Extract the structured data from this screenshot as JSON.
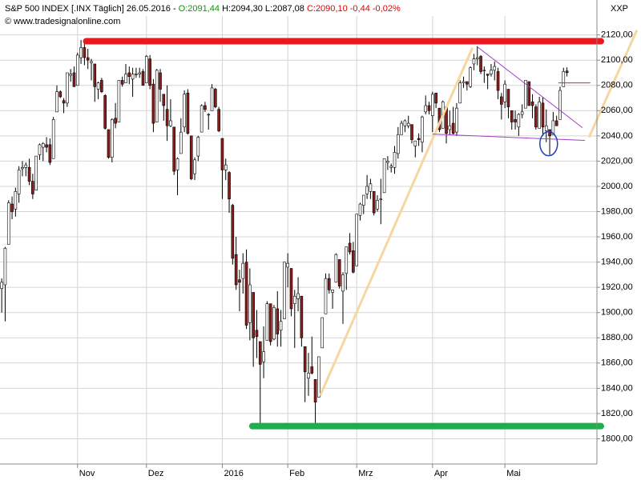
{
  "header": {
    "symbol": "S&P 500 INDEX [.INX  Täglich] 26.05.2016 -",
    "open_label": "O:2091,44",
    "hl_label": "H:2094,30 L:2087,08",
    "close_label": "C:2090,10 -0,44 -0,02%",
    "source": "© www.tradesignalonline.com",
    "corner": "XXP"
  },
  "chart_data": {
    "type": "candlestick",
    "categories": [
      null,
      null,
      null,
      null,
      null,
      null,
      null,
      null,
      null,
      null,
      null,
      null,
      null,
      null,
      null,
      null,
      null,
      null,
      null,
      null,
      null,
      null,
      "Nov",
      null,
      null,
      null,
      null,
      null,
      null,
      null,
      null,
      null,
      null,
      null,
      null,
      null,
      null,
      null,
      null,
      null,
      null,
      null,
      "Dez",
      null,
      null,
      null,
      null,
      null,
      null,
      null,
      null,
      null,
      null,
      null,
      null,
      null,
      null,
      null,
      null,
      null,
      null,
      null,
      null,
      null,
      "2016",
      null,
      null,
      null,
      null,
      null,
      null,
      null,
      null,
      null,
      null,
      null,
      null,
      null,
      null,
      null,
      null,
      null,
      null,
      "Feb",
      null,
      null,
      null,
      null,
      null,
      null,
      null,
      null,
      null,
      null,
      null,
      null,
      null,
      null,
      null,
      null,
      null,
      null,
      null,
      "Mrz",
      null,
      null,
      null,
      null,
      null,
      null,
      null,
      null,
      null,
      null,
      null,
      null,
      null,
      null,
      null,
      null,
      null,
      null,
      null,
      null,
      null,
      "Apr",
      null,
      null,
      null,
      null,
      null,
      null,
      null,
      null,
      null,
      null,
      null,
      null,
      null,
      null,
      null,
      null,
      null,
      null,
      null,
      null,
      "Mai",
      null,
      null,
      null,
      null,
      null,
      null,
      null,
      null,
      null,
      null,
      null,
      null,
      null,
      null,
      null,
      null,
      null,
      null
    ],
    "open": [
      1919,
      1922,
      1954,
      1986,
      1982,
      1994,
      2014,
      2015,
      2015,
      2004,
      1997,
      2025,
      2031,
      2033,
      2033,
      2022,
      2059,
      2075,
      2068,
      2066,
      2088,
      2090,
      2080,
      2102,
      2110,
      2102,
      2098,
      2097,
      2077,
      2084,
      2072,
      2045,
      2023,
      2054,
      2051,
      2084,
      2082,
      2090,
      2085,
      2089,
      2089,
      2091,
      2082,
      2101,
      2081,
      2051,
      2090,
      2073,
      2061,
      2048,
      2047,
      2013,
      2026,
      2047,
      2074,
      2040,
      2010,
      2024,
      2043,
      2064,
      2057,
      2060,
      2077,
      2061,
      2038,
      2013,
      2011,
      1985,
      1946,
      1926,
      1927,
      1940,
      1892,
      1916,
      1886,
      1877,
      1861,
      1878,
      1907,
      1879,
      1903,
      1886,
      1895,
      1936,
      1935,
      1907,
      1911,
      1913,
      1873,
      1848,
      1857,
      1847,
      1833,
      1872,
      1899,
      1927,
      1916,
      1924,
      1942,
      1917,
      1931,
      1955,
      1949,
      1937,
      1977,
      1985,
      1994,
      1996,
      1996,
      1982,
      1990,
      1995,
      2019,
      2015,
      2015,
      2026,
      2041,
      2048,
      2048,
      2049,
      2032,
      2038,
      2035,
      2059,
      2064,
      2056,
      2074,
      2062,
      2046,
      2063,
      2045,
      2050,
      2043,
      2066,
      2082,
      2083,
      2079,
      2097,
      2101,
      2103,
      2092,
      2089,
      2089,
      2092,
      2091,
      2071,
      2067,
      2077,
      2060,
      2053,
      2047,
      2057,
      2062,
      2083,
      2067,
      2063,
      2046,
      2066,
      2044,
      2045,
      2041,
      2052,
      2053,
      2079,
      2091.44
    ],
    "high": [
      1927,
      1952,
      1989,
      1992,
      1999,
      2016,
      2020,
      2019,
      2022,
      2010,
      2024,
      2034,
      2035,
      2039,
      2038,
      2055,
      2080,
      2076,
      2070,
      2090,
      2093,
      2095,
      2106,
      2116,
      2114,
      2109,
      2101,
      2097,
      2083,
      2086,
      2073,
      2045,
      2054,
      2066,
      2084,
      2087,
      2097,
      2095,
      2094,
      2094,
      2094,
      2093,
      2104,
      2104,
      2085,
      2093,
      2093,
      2073,
      2080,
      2069,
      2047,
      2023,
      2054,
      2076,
      2077,
      2040,
      2023,
      2040,
      2065,
      2067,
      2058,
      2081,
      2078,
      2063,
      2038,
      2022,
      2012,
      1986,
      1960,
      1934,
      1947,
      1950,
      1935,
      1916,
      1902,
      1877,
      1889,
      1909,
      1907,
      1906,
      1917,
      1902,
      1940,
      1947,
      1935,
      1918,
      1928,
      1913,
      1873,
      1868,
      1881,
      1847,
      1865,
      1895,
      1931,
      1931,
      1918,
      1947,
      1942,
      1932,
      1952,
      1963,
      1956,
      1978,
      1987,
      1993,
      2009,
      2006,
      1996,
      1993,
      2006,
      2022,
      2024,
      2018,
      2032,
      2047,
      2052,
      2053,
      2056,
      2049,
      2036,
      2042,
      2056,
      2072,
      2067,
      2075,
      2074,
      2062,
      2068,
      2063,
      2060,
      2063,
      2066,
      2084,
      2087,
      2083,
      2095,
      2105,
      2111,
      2104,
      2095,
      2089,
      2097,
      2099,
      2094,
      2074,
      2084,
      2077,
      2060,
      2060,
      2058,
      2065,
      2084,
      2083,
      2073,
      2065,
      2071,
      2071,
      2061,
      2045,
      2059,
      2056,
      2079,
      2094,
      2094.3
    ],
    "low": [
      1900,
      1893,
      1954,
      1974,
      1976,
      1987,
      2008,
      2008,
      2001,
      1990,
      1997,
      2021,
      2020,
      2027,
      2017,
      2022,
      2059,
      2070,
      2058,
      2063,
      2083,
      2079,
      2080,
      2097,
      2096,
      2093,
      2084,
      2067,
      2069,
      2074,
      2045,
      2022,
      2019,
      2046,
      2051,
      2079,
      2082,
      2081,
      2071,
      2086,
      2086,
      2080,
      2082,
      2077,
      2043,
      2051,
      2067,
      2052,
      2036,
      2047,
      2009,
      1993,
      2026,
      2043,
      2041,
      2005,
      2005,
      2020,
      2043,
      2059,
      2045,
      2060,
      2062,
      2043,
      1990,
      2005,
      1979,
      1938,
      1918,
      1901,
      1915,
      1887,
      1878,
      1857,
      1864,
      1812,
      1848,
      1878,
      1874,
      1878,
      1873,
      1873,
      1895,
      1920,
      1897,
      1872,
      1901,
      1873,
      1829,
      1834,
      1851,
      1810,
      1833,
      1872,
      1899,
      1915,
      1903,
      1924,
      1919,
      1891,
      1918,
      1946,
      1931,
      1937,
      1973,
      1978,
      1990,
      1990,
      1977,
      1980,
      1970,
      1995,
      2013,
      2011,
      2010,
      2022,
      2041,
      2043,
      2046,
      2034,
      2023,
      2032,
      2027,
      2057,
      2057,
      2043,
      2062,
      2043,
      2046,
      2034,
      2041,
      2041,
      2040,
      2066,
      2078,
      2076,
      2078,
      2092,
      2096,
      2089,
      2082,
      2077,
      2087,
      2084,
      2069,
      2053,
      2062,
      2054,
      2045,
      2045,
      2040,
      2054,
      2062,
      2064,
      2054,
      2045,
      2046,
      2040,
      2035,
      2025,
      2041,
      2048,
      2053,
      2079,
      2087.08
    ],
    "close": [
      1924,
      1951,
      1987,
      1980,
      1996,
      2013,
      2015,
      2017,
      2004,
      1994,
      2024,
      2033,
      2034,
      2031,
      2019,
      2053,
      2075,
      2071,
      2066,
      2090,
      2089,
      2079,
      2104,
      2110,
      2102,
      2100,
      2099,
      2079,
      2082,
      2075,
      2046,
      2023,
      2053,
      2050,
      2084,
      2081,
      2089,
      2087,
      2089,
      2089,
      2090,
      2080,
      2103,
      2080,
      2050,
      2092,
      2077,
      2064,
      2048,
      2052,
      2012,
      2022,
      2043,
      2073,
      2042,
      2006,
      2021,
      2039,
      2064,
      2061,
      2057,
      2078,
      2063,
      2044,
      2013,
      2017,
      1990,
      1943,
      1922,
      1924,
      1939,
      1890,
      1922,
      1880,
      1881,
      1859,
      1869,
      1907,
      1877,
      1904,
      1883,
      1893,
      1940,
      1939,
      1903,
      1913,
      1915,
      1880,
      1853,
      1852,
      1852,
      1829,
      1865,
      1896,
      1927,
      1918,
      1918,
      1946,
      1921,
      1930,
      1952,
      1948,
      1932,
      1978,
      1986,
      1993,
      2000,
      2002,
      1979,
      1989,
      1990,
      2022,
      2020,
      2016,
      2027,
      2041,
      2050,
      2052,
      2050,
      2037,
      2036,
      2037,
      2055,
      2064,
      2060,
      2073,
      2066,
      2045,
      2067,
      2042,
      2048,
      2042,
      2062,
      2082,
      2083,
      2081,
      2094,
      2101,
      2102,
      2091,
      2092,
      2088,
      2092,
      2095,
      2076,
      2065,
      2081,
      2063,
      2051,
      2051,
      2057,
      2059,
      2084,
      2064,
      2064,
      2047,
      2067,
      2047,
      2048,
      2040,
      2052,
      2048,
      2076,
      2091,
      2090.1
    ],
    "up_color": "#ffffff",
    "down_color": "#8b1c1c",
    "wick_color": "#000000",
    "xlim": [
      -0.5,
      172.7
    ],
    "ylim": [
      1780,
      2135
    ],
    "yticks": [
      {
        "value": 1800,
        "label": "1800,00"
      },
      {
        "value": 1820,
        "label": "1820,00"
      },
      {
        "value": 1840,
        "label": "1840,00"
      },
      {
        "value": 1860,
        "label": "1860,00"
      },
      {
        "value": 1880,
        "label": "1880,00"
      },
      {
        "value": 1900,
        "label": "1900,00"
      },
      {
        "value": 1920,
        "label": "1920,00"
      },
      {
        "value": 1940,
        "label": "1940,00"
      },
      {
        "value": 1960,
        "label": "1960,00"
      },
      {
        "value": 1980,
        "label": "1980,00"
      },
      {
        "value": 2000,
        "label": "2000,00"
      },
      {
        "value": 2020,
        "label": "2020,00"
      },
      {
        "value": 2040,
        "label": "2040,00"
      },
      {
        "value": 2060,
        "label": "2060,00"
      },
      {
        "value": 2080,
        "label": "2080,00"
      },
      {
        "value": 2100,
        "label": "2100,00"
      },
      {
        "value": 2120,
        "label": "2120,00"
      }
    ],
    "grid": true,
    "levels": [
      {
        "color": "#e8191f",
        "value": 2115,
        "from": 24.5
      },
      {
        "color": "#1fae4b",
        "value": 1810,
        "from": 72.7
      }
    ],
    "trendlines": [
      {
        "color": "#f5d7a1",
        "points": [
          [
            92.4,
            1834.2
          ],
          [
            136.6,
            2109.9
          ]
        ]
      },
      {
        "color": "#f5d7a1",
        "points": [
          [
            170.4,
            2038.9
          ],
          [
            184.3,
            2123.8
          ]
        ]
      },
      {
        "color": "#a040c0",
        "points": [
          [
            137.8,
            2111
          ],
          [
            168.5,
            2046.5
          ]
        ]
      },
      {
        "color": "#a040c0",
        "points": [
          [
            125,
            2041.4
          ],
          [
            169.2,
            2036.4
          ]
        ]
      },
      {
        "color": "#e02020",
        "points": [
          [
            161.5,
            2082
          ],
          [
            170.8,
            2082
          ]
        ]
      }
    ],
    "circles": [
      {
        "color": "#2040c0",
        "x": 158.7,
        "y": 2033.8
      }
    ]
  }
}
